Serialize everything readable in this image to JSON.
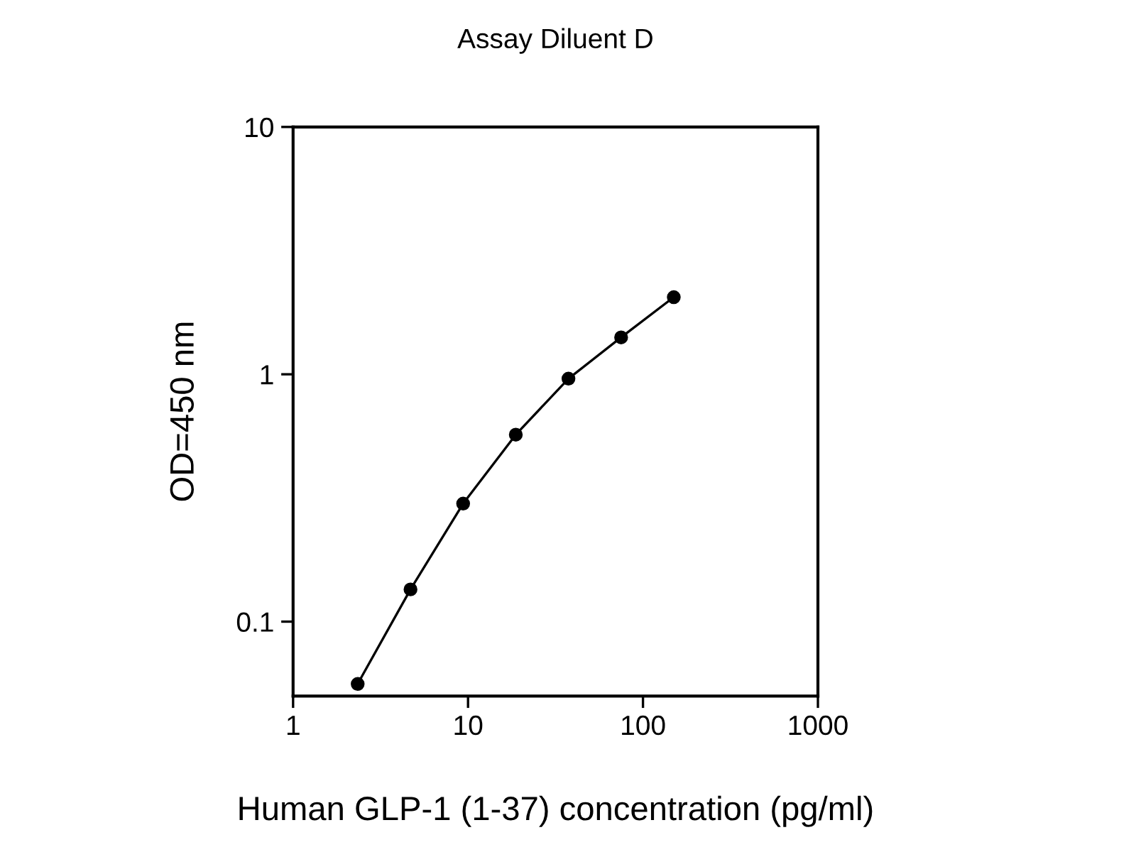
{
  "chart_data": {
    "type": "line",
    "title": "Assay Diluent D",
    "xlabel": "Human GLP-1 (1-37) concentration (pg/ml)",
    "ylabel": "OD=450 nm",
    "x": [
      2.34,
      4.69,
      9.375,
      18.75,
      37.5,
      75,
      150
    ],
    "series": [
      {
        "color": "#000000",
        "values": [
          0.056,
          0.135,
          0.3,
          0.57,
          0.96,
          1.41,
          2.05
        ]
      }
    ],
    "log": "xy",
    "xlim": [
      1,
      1000
    ],
    "ylim": [
      0.05,
      10
    ],
    "xticks": [
      1,
      10,
      100,
      1000
    ],
    "yticks": [
      0.1,
      1,
      10
    ],
    "marker": "circle",
    "line_style": "solid",
    "grid": false,
    "legend": false
  }
}
